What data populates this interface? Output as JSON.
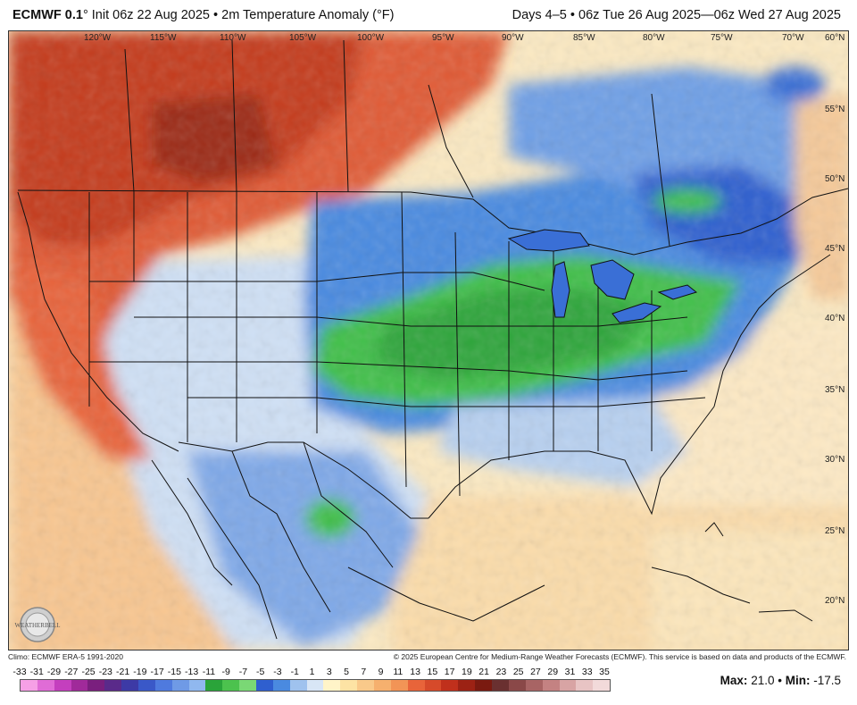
{
  "header": {
    "brand": "ECMWF 0.1",
    "title_rest": "° Init 06z 22 Aug 2025 • 2m Temperature Anomaly (°F)",
    "valid": "Days 4–5 • 06z Tue 26 Aug 2025—06z Wed 27 Aug 2025"
  },
  "map": {
    "longitude_labels": [
      "120°W",
      "115°W",
      "110°W",
      "105°W",
      "100°W",
      "95°W",
      "90°W",
      "85°W",
      "80°W",
      "75°W",
      "70°W"
    ],
    "latitude_labels": [
      "60°N",
      "55°N",
      "50°N",
      "45°N",
      "40°N",
      "35°N",
      "30°N",
      "25°N",
      "20°N"
    ],
    "region": "North America (CONUS, southern Canada, Mexico, Gulf of Mexico, Caribbean)",
    "anomaly_colors": {
      "warm_strong": "#c0301c",
      "warm": "#e8643a",
      "warm_light": "#f6b98a",
      "warm_pale": "#fbe1b4",
      "neutral": "#fff6d6",
      "cool_pale": "#cfe0f5",
      "cool": "#4a8ae0",
      "cool_strong": "#2f5fcf",
      "cold": "#3fbf4a",
      "cold_core": "#1f9a30"
    }
  },
  "footer": {
    "climo": "Climo: ECMWF ERA-5 1991-2020",
    "copyright": "© 2025 European Centre for Medium-Range Weather Forecasts (ECMWF). This service is based on data and products of the ECMWF."
  },
  "colorbar": {
    "labels": [
      "-33",
      "-31",
      "-29",
      "-27",
      "-25",
      "-23",
      "-21",
      "-19",
      "-17",
      "-15",
      "-13",
      "-11",
      "-9",
      "-7",
      "-5",
      "-3",
      "-1",
      "1",
      "3",
      "5",
      "7",
      "9",
      "11",
      "13",
      "15",
      "17",
      "19",
      "21",
      "23",
      "25",
      "27",
      "29",
      "31",
      "33",
      "35"
    ],
    "colors": [
      "#f6a0e6",
      "#e06cd6",
      "#c43fbe",
      "#a02a9a",
      "#7a1f7e",
      "#5a2a8a",
      "#3d3aa6",
      "#3a58c8",
      "#4f7ade",
      "#6f9ae6",
      "#90b8ef",
      "#2aa43a",
      "#4cc24e",
      "#7ad875",
      "#2f5fcf",
      "#4a8ae0",
      "#9fc2ee",
      "#d8e6f6",
      "#fff4c8",
      "#fde3a4",
      "#f9c98a",
      "#f6b06e",
      "#f29456",
      "#e8643a",
      "#d64a2a",
      "#c0301c",
      "#9c2214",
      "#7a1a10",
      "#6a3030",
      "#8a4848",
      "#a86464",
      "#c48282",
      "#d8a4a4",
      "#e8c4c4",
      "#f2dada"
    ],
    "max_label": "Max:",
    "max_value": "21.0",
    "min_label": "Min:",
    "min_value": "-17.5"
  },
  "logo": {
    "text": "WEATHERBELL"
  }
}
